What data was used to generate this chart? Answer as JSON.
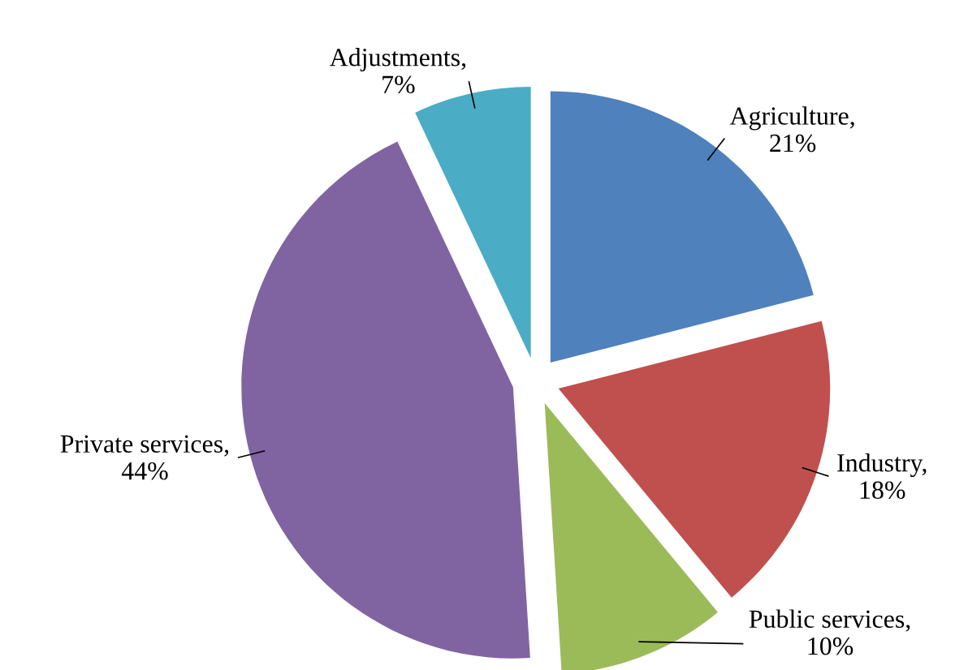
{
  "chart_data": {
    "type": "pie",
    "categories": [
      "Agriculture",
      "Industry",
      "Public services",
      "Private services",
      "Adjustments"
    ],
    "values": [
      21,
      18,
      10,
      44,
      7
    ],
    "value_labels": [
      ", 21%",
      ", 18%",
      ", 10%",
      ", 44%",
      ", 7%"
    ],
    "colors": [
      "#4f81bd",
      "#c0504d",
      "#9bbb59",
      "#8064a2",
      "#4bacc6"
    ],
    "legend": false
  }
}
